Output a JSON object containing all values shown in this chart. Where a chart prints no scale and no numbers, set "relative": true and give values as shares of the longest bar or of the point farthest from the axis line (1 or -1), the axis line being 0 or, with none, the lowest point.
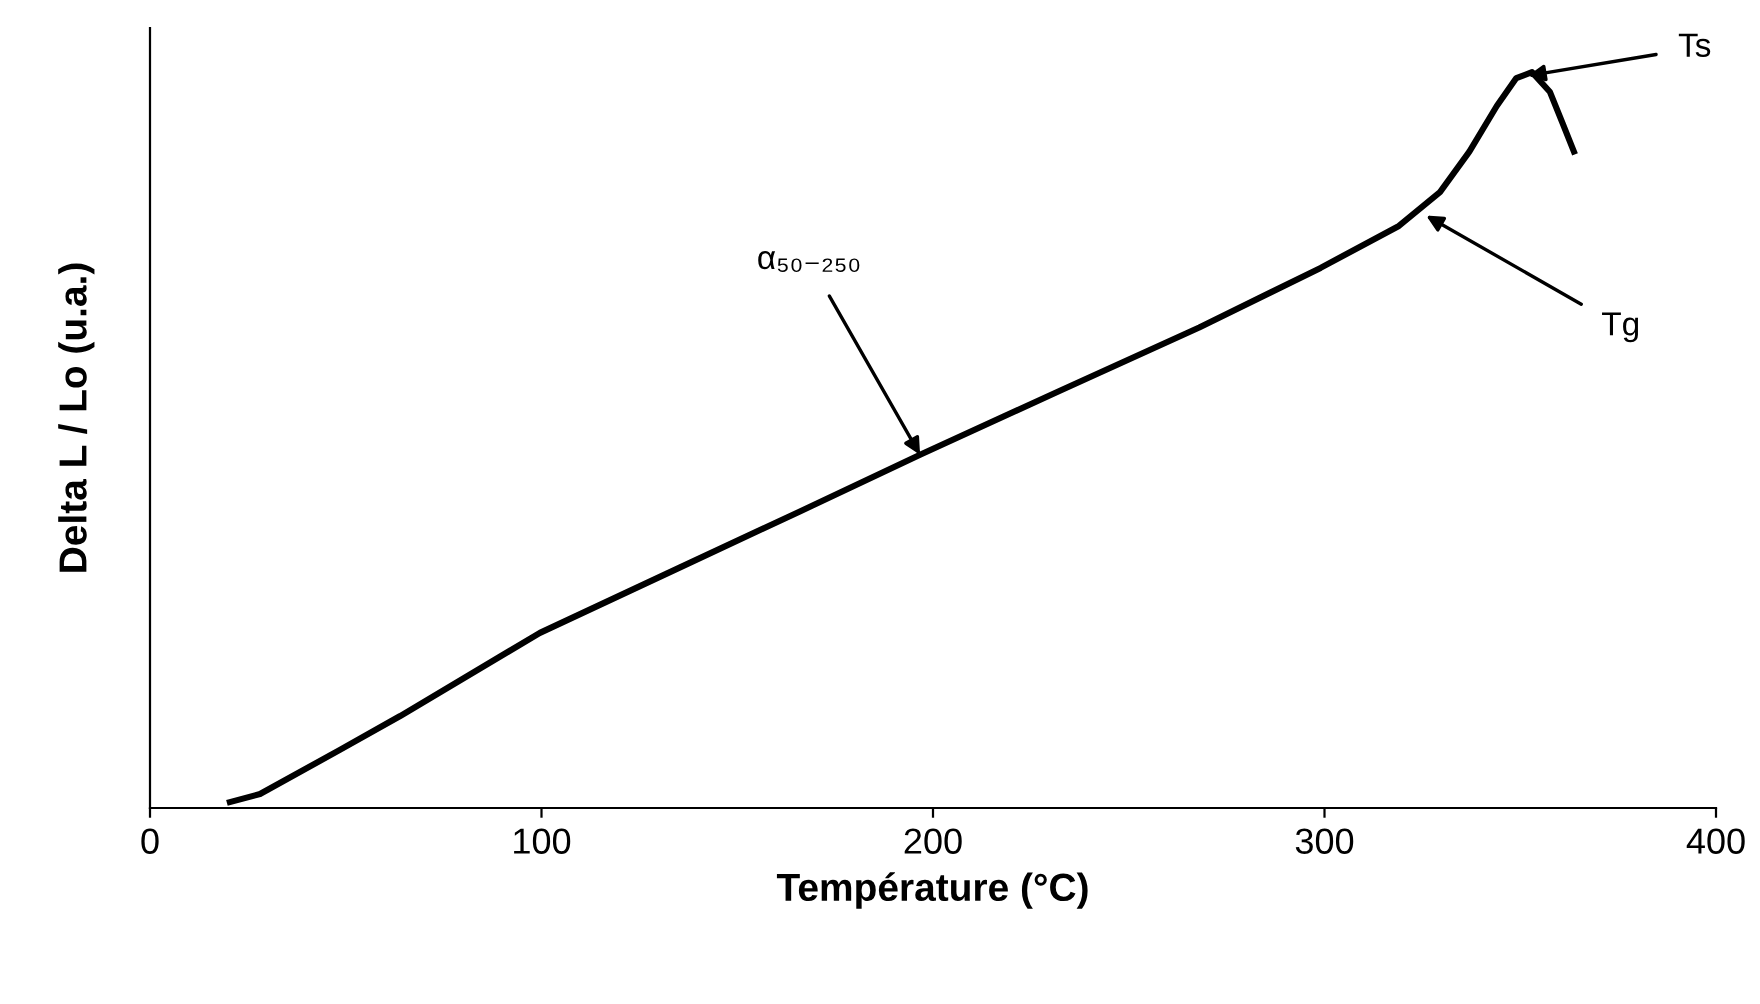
{
  "chart_data": {
    "type": "line",
    "relative": true,
    "xlabel": "Température (°C)",
    "ylabel": "Delta L / Lo (u.a.)",
    "xlim": [
      0,
      400
    ],
    "xticks": [
      0,
      100,
      200,
      300,
      400
    ],
    "grid": false,
    "legend": false,
    "marker": "none",
    "line_style": "solid",
    "tick_labels": "x",
    "series": [
      {
        "color": "#000000",
        "x": [
          20.4,
          28.1,
          48.5,
          63.9,
          99.6,
          135.4,
          166,
          196.7,
          232,
          268,
          299,
          319,
          329.5,
          337,
          344,
          349,
          353,
          357.6,
          360.7,
          363.7
        ],
        "values": [
          0.008,
          0.019,
          0.079,
          0.125,
          0.238,
          0.327,
          0.403,
          0.48,
          0.566,
          0.653,
          0.734,
          0.791,
          0.837,
          0.892,
          0.954,
          0.992,
          1.0,
          0.973,
          0.932,
          0.892
        ]
      }
    ],
    "annotations": [
      {
        "text": "α₅₀₋₂₅₀",
        "x": 196.7,
        "y": 0.48
      },
      {
        "text": "Tg",
        "x": 326,
        "y": 0.805
      },
      {
        "text": "Ts",
        "x": 352,
        "y": 0.995
      }
    ]
  }
}
